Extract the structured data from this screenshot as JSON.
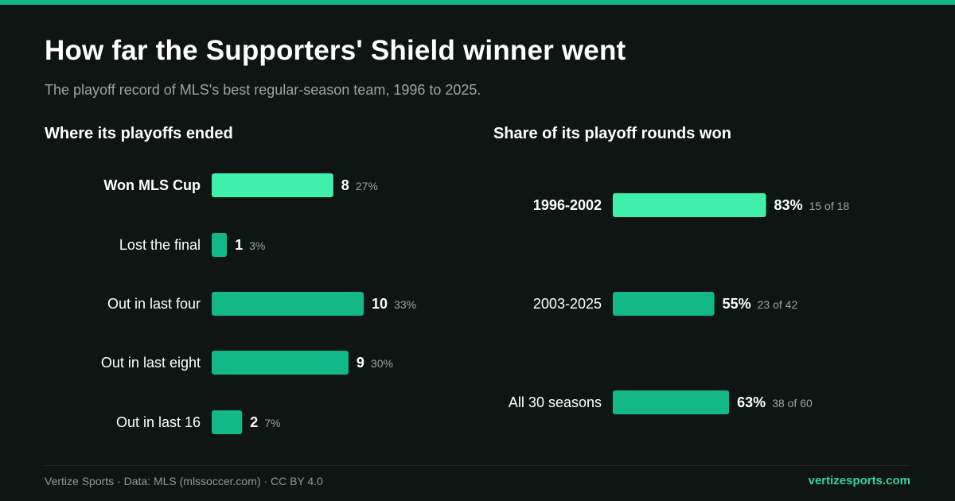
{
  "header": {
    "title": "How far the Supporters' Shield winner went",
    "subtitle": "The playoff record of MLS's best regular-season team, 1996 to 2025."
  },
  "colors": {
    "background": "#0f1513",
    "accent": "#14b886",
    "highlight_bar": "#3ff0ad",
    "bar": "#12b886",
    "muted_text": "#9aa5a0",
    "footer_link": "#2fd69a"
  },
  "chart_data": [
    {
      "type": "bar",
      "orientation": "horizontal",
      "title": "Where its playoffs ended",
      "categories": [
        "Won MLS Cup",
        "Lost the final",
        "Out in last four",
        "Out in last eight",
        "Out in last 16"
      ],
      "values": [
        8,
        1,
        10,
        9,
        2
      ],
      "value_labels": [
        "8",
        "1",
        "10",
        "9",
        "2"
      ],
      "annotations": [
        "27%",
        "3%",
        "33%",
        "30%",
        "7%"
      ],
      "highlight": [
        true,
        false,
        false,
        false,
        false
      ],
      "xlim": [
        0,
        10
      ],
      "grid": false
    },
    {
      "type": "bar",
      "orientation": "horizontal",
      "title": "Share of its playoff rounds won",
      "categories": [
        "1996-2002",
        "2003-2025",
        "All 30 seasons"
      ],
      "values": [
        83,
        55,
        63
      ],
      "value_labels": [
        "83%",
        "55%",
        "63%"
      ],
      "annotations": [
        "15 of 18",
        "23 of 42",
        "38 of 60"
      ],
      "highlight": [
        true,
        false,
        false
      ],
      "xlim": [
        0,
        100
      ],
      "grid": false
    }
  ],
  "footer": {
    "source": "Vertize Sports · Data: MLS (mlssoccer.com) · CC BY 4.0",
    "site": "vertizesports.com"
  }
}
